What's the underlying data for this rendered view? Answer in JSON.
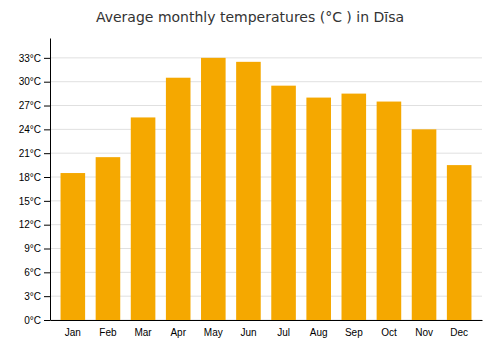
{
  "chart_data": {
    "type": "bar",
    "title": "Average monthly temperatures (°C ) in Dīsa",
    "categories": [
      "Jan",
      "Feb",
      "Mar",
      "Apr",
      "May",
      "Jun",
      "Jul",
      "Aug",
      "Sep",
      "Oct",
      "Nov",
      "Dec"
    ],
    "values": [
      18.5,
      20.5,
      25.5,
      30.5,
      33.0,
      32.5,
      29.5,
      28.0,
      28.5,
      27.5,
      24.0,
      19.5
    ],
    "color": "#F5A800",
    "ylim": [
      0,
      35.5
    ],
    "yticks": [
      {
        "value": 0,
        "label": "0°C"
      },
      {
        "value": 3,
        "label": "3°C"
      },
      {
        "value": 6,
        "label": "6°C"
      },
      {
        "value": 9,
        "label": "9°C"
      },
      {
        "value": 12,
        "label": "12°C"
      },
      {
        "value": 15,
        "label": "15°C"
      },
      {
        "value": 18,
        "label": "18°C"
      },
      {
        "value": 21,
        "label": "21°C"
      },
      {
        "value": 24,
        "label": "24°C"
      },
      {
        "value": 27,
        "label": "27°C"
      },
      {
        "value": 30,
        "label": "30°C"
      },
      {
        "value": 33,
        "label": "33°C"
      }
    ],
    "grid": true
  }
}
